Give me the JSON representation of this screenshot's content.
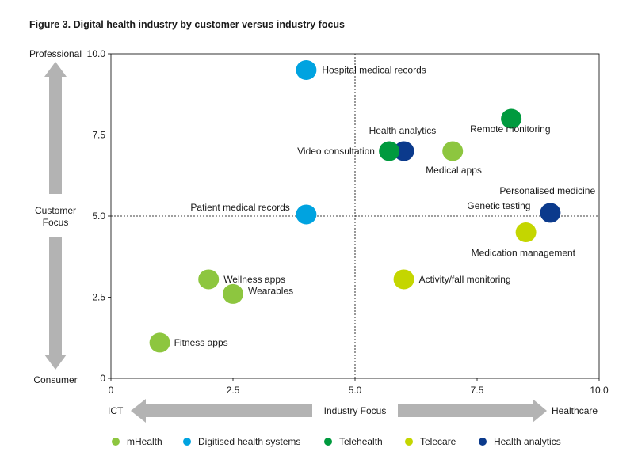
{
  "title": "Figure 3. Digital health industry by customer versus industry focus",
  "chart_data": {
    "type": "scatter",
    "xlabel": "Industry Focus",
    "ylabel": "Customer Focus",
    "xlim": [
      0,
      10
    ],
    "ylim": [
      0,
      10
    ],
    "x_ticks": [
      "0",
      "2.5",
      "5.0",
      "7.5",
      "10.0"
    ],
    "y_ticks": [
      "0",
      "2.5",
      "5.0",
      "7.5",
      "10.0"
    ],
    "x_left_label": "ICT",
    "x_right_label": "Healthcare",
    "y_top_label": "Professional",
    "y_bottom_label": "Consumer",
    "reference_lines": {
      "x": 5.0,
      "y": 5.0
    },
    "legend": [
      {
        "name": "mHealth",
        "color": "#8dc63f"
      },
      {
        "name": "Digitised health systems",
        "color": "#00a3e0"
      },
      {
        "name": "Telehealth",
        "color": "#009a3e"
      },
      {
        "name": "Telecare",
        "color": "#c4d600"
      },
      {
        "name": "Health analytics",
        "color": "#0b3a8c"
      }
    ],
    "points": [
      {
        "label": "Hospital medical records",
        "series": "Digitised health systems",
        "x": 4.0,
        "y": 9.5
      },
      {
        "label": "Remote monitoring",
        "series": "Telehealth",
        "x": 8.2,
        "y": 8.0
      },
      {
        "label": "Health analytics",
        "series": "Health analytics",
        "x": 6.0,
        "y": 7.0
      },
      {
        "label": "Video consultation",
        "series": "Telehealth",
        "x": 5.7,
        "y": 7.0
      },
      {
        "label": "Medical apps",
        "series": "mHealth",
        "x": 7.0,
        "y": 7.0
      },
      {
        "label": "Patient medical records",
        "series": "Digitised health systems",
        "x": 4.0,
        "y": 5.05
      },
      {
        "label": "Personalised medicine",
        "series": "Health analytics",
        "x": 9.0,
        "y": 5.1
      },
      {
        "label": "Genetic testing",
        "series": "Health analytics",
        "x": 9.0,
        "y": 5.1
      },
      {
        "label": "Medication management",
        "series": "Telecare",
        "x": 8.5,
        "y": 4.5
      },
      {
        "label": "Wellness apps",
        "series": "mHealth",
        "x": 2.0,
        "y": 3.05
      },
      {
        "label": "Activity/fall monitoring",
        "series": "Telecare",
        "x": 6.0,
        "y": 3.05
      },
      {
        "label": "Wearables",
        "series": "mHealth",
        "x": 2.5,
        "y": 2.6
      },
      {
        "label": "Fitness apps",
        "series": "mHealth",
        "x": 1.0,
        "y": 1.1
      }
    ]
  }
}
